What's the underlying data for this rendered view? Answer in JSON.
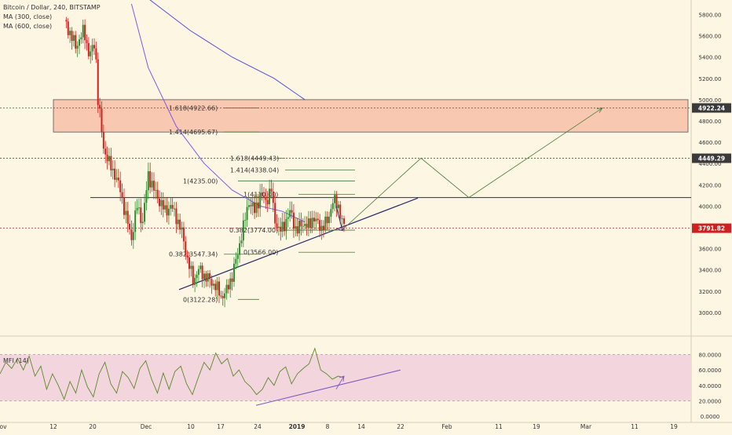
{
  "legend": {
    "symbol": "Bitcoin / Dollar, 240, BITSTAMP",
    "ma300": "MA (300, close)",
    "ma600": "MA (600, close)"
  },
  "mfi_label": "MFI (14)",
  "colors": {
    "background": "#fdf6e3",
    "up": "#2e8b2e",
    "down": "#d02020",
    "ma300": "#7b5ce6",
    "ma600": "#5a4ddb",
    "zone": "#f8c8b0",
    "mfi_band": "#f3d5dd",
    "mfi_line": "#5a8a2a",
    "price_badge": "#d02020",
    "level_badge": "#3a3a3a"
  },
  "chart_data": [
    {
      "type": "candlestick",
      "title": "Bitcoin / Dollar, 240, BITSTAMP",
      "ylim": [
        2800,
        5900
      ],
      "y_ticks": [
        3000,
        3200,
        3400,
        3600,
        3800,
        4000,
        4200,
        4400,
        4600,
        4800,
        5000,
        5200,
        5400,
        5600,
        5800
      ],
      "y_tick_labels": [
        "3000.00",
        "3200.00",
        "3400.00",
        "3600.00",
        "3800.00",
        "4000.00",
        "4200.00",
        "4400.00",
        "4600.00",
        "4800.00",
        "5000.00",
        "5200.00",
        "5400.00",
        "5600.00",
        "5800.00"
      ],
      "x_tick_labels": [
        "ov",
        "12",
        "20",
        "Dec",
        "10",
        "17",
        "24",
        "2019",
        "8",
        "14",
        "22",
        "Feb",
        "11",
        "19",
        "Mar",
        "11",
        "19"
      ],
      "price_path": [
        [
          0.0,
          5750
        ],
        [
          0.04,
          5500
        ],
        [
          0.07,
          5650
        ],
        [
          0.09,
          5400
        ],
        [
          0.11,
          5550
        ],
        [
          0.12,
          5000
        ],
        [
          0.14,
          4550
        ],
        [
          0.16,
          4400
        ],
        [
          0.18,
          4300
        ],
        [
          0.2,
          4150
        ],
        [
          0.22,
          3900
        ],
        [
          0.24,
          3700
        ],
        [
          0.26,
          4000
        ],
        [
          0.28,
          3850
        ],
        [
          0.3,
          4300
        ],
        [
          0.32,
          4150
        ],
        [
          0.34,
          4050
        ],
        [
          0.36,
          3950
        ],
        [
          0.38,
          4000
        ],
        [
          0.4,
          3900
        ],
        [
          0.42,
          3750
        ],
        [
          0.44,
          3500
        ],
        [
          0.46,
          3300
        ],
        [
          0.48,
          3400
        ],
        [
          0.5,
          3350
        ],
        [
          0.52,
          3300
        ],
        [
          0.54,
          3250
        ],
        [
          0.56,
          3150
        ],
        [
          0.58,
          3200
        ],
        [
          0.6,
          3350
        ],
        [
          0.62,
          3550
        ],
        [
          0.63,
          3700
        ],
        [
          0.64,
          3800
        ],
        [
          0.66,
          4050
        ],
        [
          0.68,
          3950
        ],
        [
          0.7,
          4100
        ],
        [
          0.72,
          4050
        ],
        [
          0.74,
          4150
        ],
        [
          0.75,
          3900
        ],
        [
          0.77,
          3750
        ],
        [
          0.79,
          3850
        ],
        [
          0.81,
          3950
        ],
        [
          0.83,
          3750
        ],
        [
          0.85,
          3850
        ],
        [
          0.87,
          3800
        ],
        [
          0.89,
          3900
        ],
        [
          0.9,
          3850
        ],
        [
          0.92,
          3800
        ],
        [
          0.94,
          3850
        ],
        [
          0.96,
          4050
        ],
        [
          0.98,
          4000
        ],
        [
          1.0,
          3791.82
        ]
      ],
      "current_price": "3791.82",
      "ma_300": [
        [
          0.24,
          5900
        ],
        [
          0.3,
          5300
        ],
        [
          0.4,
          4750
        ],
        [
          0.5,
          4400
        ],
        [
          0.6,
          4150
        ],
        [
          0.7,
          4000
        ],
        [
          0.78,
          3950
        ],
        [
          0.86,
          3850
        ]
      ],
      "ma_600": [
        [
          0.3,
          5950
        ],
        [
          0.45,
          5650
        ],
        [
          0.6,
          5400
        ],
        [
          0.75,
          5200
        ],
        [
          0.86,
          5000
        ]
      ],
      "resistance_zone": [
        4695.67,
        5000
      ],
      "levels": [
        {
          "value": 4922.24,
          "badge": "4922.24"
        },
        {
          "value": 4449.29,
          "badge": "4449.29"
        },
        {
          "value": 3791.82,
          "badge": "3791.82"
        }
      ],
      "fib_labels": [
        {
          "text": "1.618(4922.66)",
          "value": 4922.66
        },
        {
          "text": "1.414(4695.67)",
          "value": 4695.67
        },
        {
          "text": "1.618(4449.43)",
          "value": 4449.43
        },
        {
          "text": "1.414(4338.04)",
          "value": 4338.04
        },
        {
          "text": "1(4235.00)",
          "value": 4235.0
        },
        {
          "text": "1(4110.00)",
          "value": 4110.0
        },
        {
          "text": "0.382(3774.00)",
          "value": 3774.0
        },
        {
          "text": "0(3566.00)",
          "value": 3566.0
        },
        {
          "text": "0.382(3547.34)",
          "value": 3547.34
        },
        {
          "text": "0(3122.28)",
          "value": 3122.28
        }
      ]
    },
    {
      "type": "line",
      "title": "MFI (14)",
      "ylim": [
        0,
        100
      ],
      "y_ticks": [
        0,
        20,
        40,
        60,
        80
      ],
      "y_tick_labels": [
        "0.0000",
        "20.0000",
        "40.0000",
        "60.0000",
        "80.0000"
      ],
      "band": [
        20,
        80
      ],
      "series": [
        {
          "values": [
            55,
            70,
            62,
            75,
            60,
            78,
            52,
            65,
            35,
            55,
            40,
            22,
            45,
            30,
            60,
            38,
            25,
            55,
            70,
            42,
            30,
            58,
            50,
            36,
            62,
            72,
            48,
            30,
            56,
            35,
            58,
            65,
            42,
            28,
            50,
            70,
            60,
            82,
            68,
            75,
            52,
            60,
            45,
            38,
            28,
            35,
            50,
            40,
            58,
            64,
            42,
            55,
            62,
            68,
            88,
            60,
            55,
            48,
            52,
            50
          ]
        }
      ]
    }
  ]
}
